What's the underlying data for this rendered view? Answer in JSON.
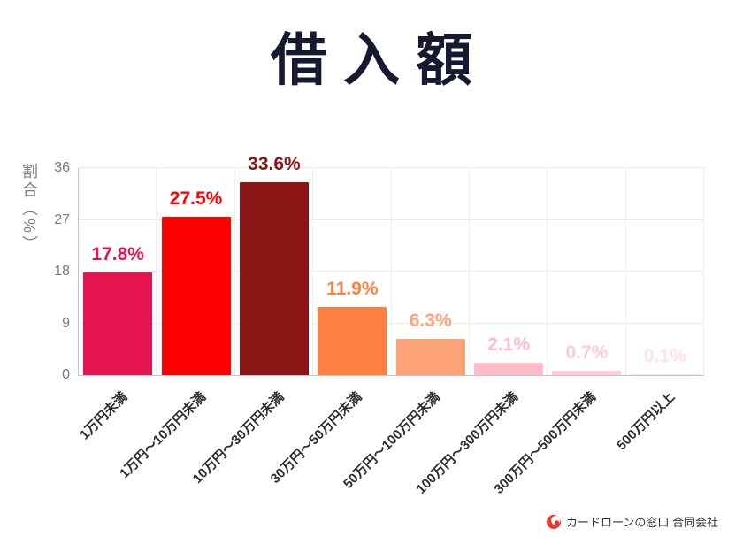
{
  "title": "借入額",
  "chart_data": {
    "type": "bar",
    "title": "借入額",
    "ylabel": "割合（%）",
    "xlabel": "",
    "ylim": [
      0,
      36
    ],
    "yticks": [
      0,
      9,
      18,
      27,
      36
    ],
    "grid": true,
    "legend": "none",
    "categories": [
      "1万円未満",
      "1万円～10万円未満",
      "10万円～30万円未満",
      "30万円～50万円未満",
      "50万円～100万円未満",
      "100万円～300万円未満",
      "300万円～500万円未満",
      "500万円以上"
    ],
    "values": [
      17.8,
      27.5,
      33.6,
      11.9,
      6.3,
      2.1,
      0.7,
      0.1
    ],
    "value_labels": [
      "17.8%",
      "27.5%",
      "33.6%",
      "11.9%",
      "6.3%",
      "2.1%",
      "0.7%",
      "0.1%"
    ],
    "bar_colors": [
      "#e5134e",
      "#fe0000",
      "#8b1414",
      "#ff7f41",
      "#ffa478",
      "#ffbcc8",
      "#ffccd5",
      "#ffe2e8"
    ],
    "label_colors": [
      "#e5134e",
      "#fe0000",
      "#8b1414",
      "#ff7f41",
      "#ffa478",
      "#ffbcc8",
      "#ffccd5",
      "#ffe2e8"
    ]
  },
  "colors": {
    "title": "#171a2e",
    "axis": "#c4c4c4",
    "grid": "#ececec",
    "tick_text": "#7b7b7b",
    "category_text": "#2e2e2e",
    "logo_red": "#e8382d"
  },
  "footer": {
    "company": "カードローンの窓口 合同会社"
  }
}
